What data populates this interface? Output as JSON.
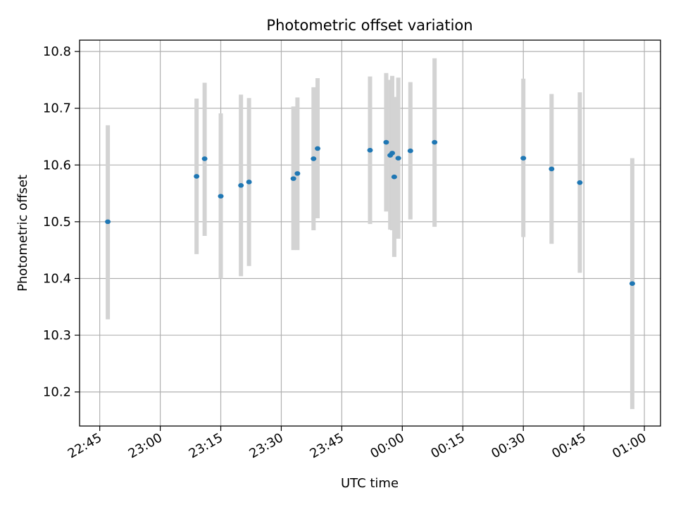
{
  "chart_data": {
    "type": "scatter",
    "title": "Photometric offset variation",
    "xlabel": "UTC time",
    "ylabel": "Photometric offset",
    "grid": true,
    "colors": {
      "point": "#1f77b4",
      "errorbar": "#d3d3d3",
      "grid": "#b0b0b0"
    },
    "x_ticks": [
      "22:45",
      "23:00",
      "23:15",
      "23:30",
      "23:45",
      "00:00",
      "00:15",
      "00:30",
      "00:45",
      "01:00"
    ],
    "y_ticks": [
      "10.2",
      "10.3",
      "10.4",
      "10.5",
      "10.6",
      "10.7",
      "10.8"
    ],
    "xlim": [
      "22:40",
      "01:04"
    ],
    "ylim": [
      10.14,
      10.82
    ],
    "series": [
      {
        "points": [
          {
            "x": "22:47",
            "y": 10.5,
            "ylo": 10.328,
            "yhi": 10.67
          },
          {
            "x": "23:09",
            "y": 10.58,
            "ylo": 10.443,
            "yhi": 10.717
          },
          {
            "x": "23:11",
            "y": 10.611,
            "ylo": 10.475,
            "yhi": 10.745
          },
          {
            "x": "23:15",
            "y": 10.545,
            "ylo": 10.4,
            "yhi": 10.691
          },
          {
            "x": "23:20",
            "y": 10.564,
            "ylo": 10.404,
            "yhi": 10.724
          },
          {
            "x": "23:22",
            "y": 10.57,
            "ylo": 10.422,
            "yhi": 10.718
          },
          {
            "x": "23:33",
            "y": 10.576,
            "ylo": 10.45,
            "yhi": 10.703
          },
          {
            "x": "23:34",
            "y": 10.585,
            "ylo": 10.45,
            "yhi": 10.719
          },
          {
            "x": "23:38",
            "y": 10.611,
            "ylo": 10.485,
            "yhi": 10.737
          },
          {
            "x": "23:39",
            "y": 10.629,
            "ylo": 10.506,
            "yhi": 10.753
          },
          {
            "x": "23:52",
            "y": 10.626,
            "ylo": 10.496,
            "yhi": 10.756
          },
          {
            "x": "23:56",
            "y": 10.64,
            "ylo": 10.518,
            "yhi": 10.762
          },
          {
            "x": "23:57",
            "y": 10.617,
            "ylo": 10.486,
            "yhi": 10.75
          },
          {
            "x": "23:57.5",
            "y": 10.621,
            "ylo": 10.485,
            "yhi": 10.757
          },
          {
            "x": "23:58",
            "y": 10.579,
            "ylo": 10.438,
            "yhi": 10.72
          },
          {
            "x": "23:59",
            "y": 10.612,
            "ylo": 10.47,
            "yhi": 10.754
          },
          {
            "x": "00:02",
            "y": 10.625,
            "ylo": 10.504,
            "yhi": 10.746
          },
          {
            "x": "00:08",
            "y": 10.64,
            "ylo": 10.491,
            "yhi": 10.788
          },
          {
            "x": "00:30",
            "y": 10.612,
            "ylo": 10.473,
            "yhi": 10.752
          },
          {
            "x": "00:37",
            "y": 10.593,
            "ylo": 10.461,
            "yhi": 10.725
          },
          {
            "x": "00:44",
            "y": 10.569,
            "ylo": 10.41,
            "yhi": 10.728
          },
          {
            "x": "00:57",
            "y": 10.391,
            "ylo": 10.17,
            "yhi": 10.612
          }
        ]
      }
    ]
  }
}
